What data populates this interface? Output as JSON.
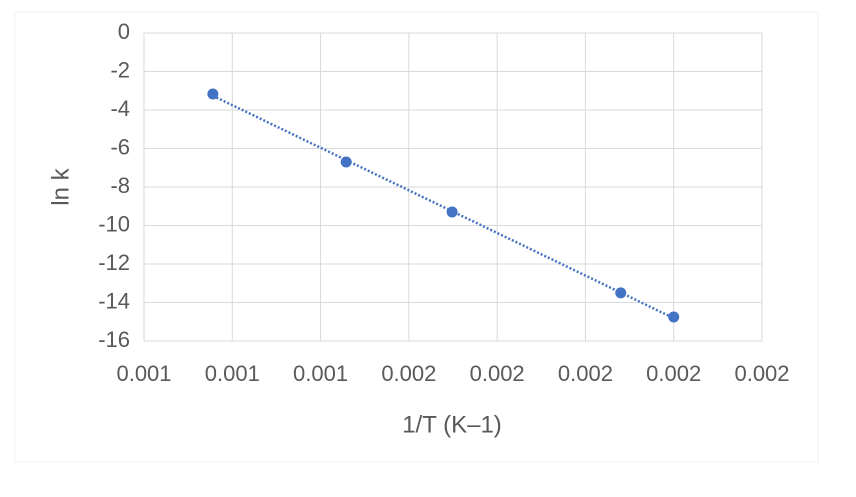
{
  "chart_data": {
    "type": "scatter",
    "x_label": "1/T (K–1)",
    "y_label": "ln k",
    "color": "#4472c4",
    "trendline": true,
    "grid": true,
    "x": [
      0.001278,
      0.001429,
      0.001549,
      0.00174,
      0.0018
    ],
    "values": [
      -3.17,
      -6.7,
      -9.3,
      -13.5,
      -14.75
    ],
    "xlim": [
      0.0012,
      0.0019
    ],
    "xticks": [
      {
        "value": 0.0012,
        "label": "0.001"
      },
      {
        "value": 0.0013,
        "label": "0.001"
      },
      {
        "value": 0.0014,
        "label": "0.001"
      },
      {
        "value": 0.0015,
        "label": "0.002"
      },
      {
        "value": 0.0016,
        "label": "0.002"
      },
      {
        "value": 0.0017,
        "label": "0.002"
      },
      {
        "value": 0.0018,
        "label": "0.002"
      },
      {
        "value": 0.0019,
        "label": "0.002"
      }
    ],
    "ylim": [
      -16,
      0
    ],
    "yticks": [
      0,
      -2,
      -4,
      -6,
      -8,
      -10,
      -12,
      -14,
      -16
    ]
  }
}
